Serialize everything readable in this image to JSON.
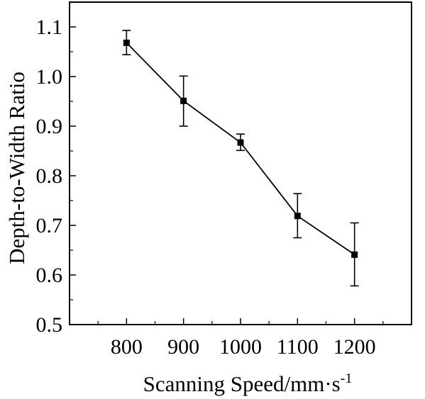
{
  "chart_data": {
    "type": "line",
    "title": "",
    "xlabel": "Scanning Speed/mm·s",
    "xlabel_superscript": "-1",
    "ylabel": "Depth-to-Width Ratio",
    "x": [
      800,
      900,
      1000,
      1100,
      1200
    ],
    "xticks": [
      "800",
      "900",
      "1000",
      "1100",
      "1200"
    ],
    "yticks": [
      "0.5",
      "0.6",
      "0.7",
      "0.8",
      "0.9",
      "1.0",
      "1.1"
    ],
    "xlim": [
      700,
      1300
    ],
    "ylim": [
      0.5,
      1.15
    ],
    "grid": false,
    "legend": "none",
    "series": [
      {
        "values": [
          1.068,
          0.951,
          0.867,
          0.719,
          0.641
        ],
        "error_low": [
          1.044,
          0.9,
          0.851,
          0.675,
          0.578
        ],
        "error_high": [
          1.093,
          1.001,
          0.884,
          0.764,
          0.705
        ],
        "marker": "square",
        "color": "#000000"
      }
    ]
  }
}
